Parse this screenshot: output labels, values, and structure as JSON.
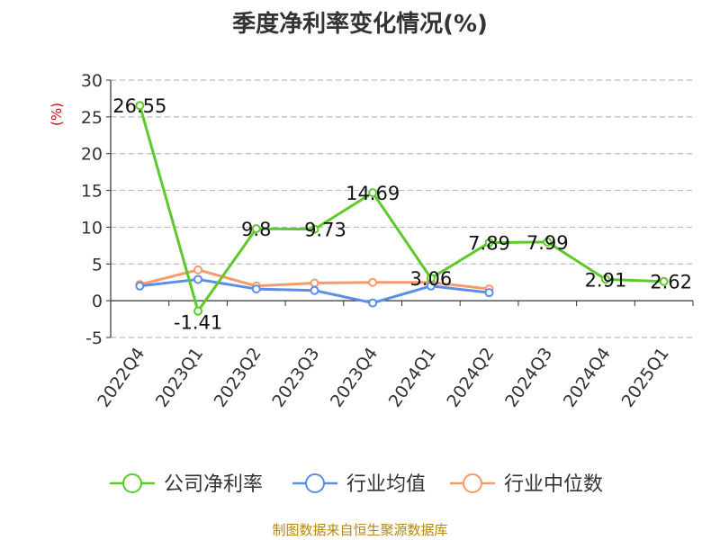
{
  "chart_data": {
    "type": "line",
    "title": "季度净利率变化情况(%)",
    "ylabel": "(%)",
    "ylim": [
      -5,
      30
    ],
    "yticks": [
      30,
      25,
      20,
      15,
      10,
      5,
      0,
      -5
    ],
    "categories": [
      "2022Q4",
      "2023Q1",
      "2023Q2",
      "2023Q3",
      "2023Q4",
      "2024Q1",
      "2024Q2",
      "2024Q3",
      "2024Q4",
      "2025Q1"
    ],
    "grid": true,
    "legend_position": "bottom",
    "series": [
      {
        "name": "公司净利率",
        "color": "#5ec92a",
        "values": [
          26.55,
          -1.41,
          9.8,
          9.73,
          14.69,
          3.06,
          7.89,
          7.99,
          2.91,
          2.62
        ],
        "labels": [
          "26.55",
          "-1.41",
          "9.8",
          "9.73",
          "14.69",
          "3.06",
          "7.89",
          "7.99",
          "2.91",
          "2.62"
        ]
      },
      {
        "name": "行业均值",
        "color": "#5b8ee6",
        "values": [
          2.0,
          2.9,
          1.6,
          1.4,
          -0.3,
          2.0,
          1.1,
          null,
          null,
          null
        ]
      },
      {
        "name": "行业中位数",
        "color": "#f59a6b",
        "values": [
          2.2,
          4.2,
          2.0,
          2.4,
          2.5,
          2.5,
          1.6,
          null,
          null,
          null
        ]
      }
    ]
  },
  "footer": {
    "source": "制图数据来自恒生聚源数据库"
  }
}
